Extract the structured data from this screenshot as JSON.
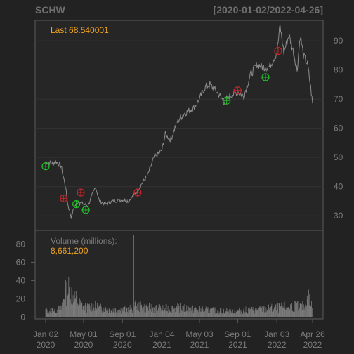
{
  "title": "SCHW",
  "date_range": "[2020-01-02/2022-04-26]",
  "last_label": "Last 68.540001",
  "volume_label": "Volume (millions):",
  "volume_value": "8,661,200",
  "colors": {
    "background": "#222222",
    "panel": "#262626",
    "price_line": "#8c8c8c",
    "volume_bar": "#7a7a7a",
    "accent": "#f0a21e",
    "buy_marker": "#22c02c",
    "sell_marker": "#c0262c",
    "grid": "#333333",
    "axis_text": "#7b7b7b",
    "title_text": "#6f6f6f"
  },
  "chart_data": {
    "type": "line",
    "panels": [
      "price",
      "volume"
    ],
    "x_tick_labels": [
      {
        "date": "2020-01-02",
        "line1": "Jan 02",
        "line2": "2020"
      },
      {
        "date": "2020-05-01",
        "line1": "May 01",
        "line2": "2020"
      },
      {
        "date": "2020-09-01",
        "line1": "Sep 01",
        "line2": "2020"
      },
      {
        "date": "2021-01-04",
        "line1": "Jan 04",
        "line2": "2021"
      },
      {
        "date": "2021-05-03",
        "line1": "May 03",
        "line2": "2021"
      },
      {
        "date": "2021-09-01",
        "line1": "Sep 01",
        "line2": "2021"
      },
      {
        "date": "2022-01-03",
        "line1": "Jan 03",
        "line2": "2022"
      },
      {
        "date": "2022-04-26",
        "line1": "Apr 26",
        "line2": "2022"
      }
    ],
    "price": {
      "ylim": [
        25,
        97
      ],
      "y_ticks": [
        30,
        40,
        50,
        60,
        70,
        80,
        90
      ],
      "grid": true,
      "series": [
        [
          "2020-01-02",
          48.5
        ],
        [
          "2020-01-20",
          48.0
        ],
        [
          "2020-02-05",
          48.5
        ],
        [
          "2020-02-20",
          47.0
        ],
        [
          "2020-03-05",
          40.0
        ],
        [
          "2020-03-12",
          34.0
        ],
        [
          "2020-03-23",
          29.5
        ],
        [
          "2020-04-01",
          33.0
        ],
        [
          "2020-04-15",
          35.0
        ],
        [
          "2020-05-01",
          34.0
        ],
        [
          "2020-05-15",
          33.5
        ],
        [
          "2020-06-08",
          40.0
        ],
        [
          "2020-06-20",
          35.0
        ],
        [
          "2020-07-10",
          34.0
        ],
        [
          "2020-08-01",
          35.0
        ],
        [
          "2020-09-01",
          35.5
        ],
        [
          "2020-09-20",
          35.0
        ],
        [
          "2020-10-15",
          38.0
        ],
        [
          "2020-11-01",
          41.0
        ],
        [
          "2020-11-20",
          44.0
        ],
        [
          "2020-12-10",
          50.0
        ],
        [
          "2021-01-04",
          52.5
        ],
        [
          "2021-01-15",
          58.0
        ],
        [
          "2021-02-01",
          56.0
        ],
        [
          "2021-02-20",
          62.0
        ],
        [
          "2021-03-15",
          65.0
        ],
        [
          "2021-04-15",
          67.0
        ],
        [
          "2021-05-03",
          70.0
        ],
        [
          "2021-05-20",
          74.0
        ],
        [
          "2021-06-05",
          75.0
        ],
        [
          "2021-07-01",
          72.0
        ],
        [
          "2021-07-20",
          69.0
        ],
        [
          "2021-08-05",
          71.0
        ],
        [
          "2021-09-01",
          72.5
        ],
        [
          "2021-09-20",
          71.0
        ],
        [
          "2021-10-10",
          78.0
        ],
        [
          "2021-11-01",
          82.0
        ],
        [
          "2021-11-20",
          81.0
        ],
        [
          "2021-12-10",
          81.0
        ],
        [
          "2022-01-03",
          86.0
        ],
        [
          "2022-01-13",
          95.0
        ],
        [
          "2022-01-25",
          86.0
        ],
        [
          "2022-02-10",
          92.0
        ],
        [
          "2022-02-25",
          86.0
        ],
        [
          "2022-03-08",
          80.0
        ],
        [
          "2022-03-18",
          92.0
        ],
        [
          "2022-03-28",
          85.0
        ],
        [
          "2022-04-10",
          82.0
        ],
        [
          "2022-04-20",
          74.0
        ],
        [
          "2022-04-26",
          68.54
        ]
      ],
      "buy_signals": [
        [
          "2020-01-02",
          47.0
        ],
        [
          "2020-04-08",
          34.0
        ],
        [
          "2020-05-08",
          32.0
        ],
        [
          "2021-07-28",
          69.5
        ],
        [
          "2021-11-28",
          77.5
        ]
      ],
      "sell_signals": [
        [
          "2020-02-28",
          36.0
        ],
        [
          "2020-04-22",
          38.0
        ],
        [
          "2020-10-19",
          38.0
        ],
        [
          "2021-09-01",
          73.0
        ],
        [
          "2022-01-07",
          86.5
        ]
      ]
    },
    "volume": {
      "ylim": [
        -2,
        95
      ],
      "y_ticks": [
        0,
        20,
        40,
        60,
        80
      ],
      "units": "millions",
      "series": [
        [
          "2020-01-02",
          7
        ],
        [
          "2020-02-01",
          8
        ],
        [
          "2020-02-20",
          9
        ],
        [
          "2020-03-01",
          25
        ],
        [
          "2020-03-15",
          30
        ],
        [
          "2020-04-01",
          22
        ],
        [
          "2020-04-20",
          14
        ],
        [
          "2020-05-10",
          10
        ],
        [
          "2020-06-01",
          12
        ],
        [
          "2020-07-01",
          9
        ],
        [
          "2020-08-01",
          8
        ],
        [
          "2020-09-01",
          8
        ],
        [
          "2020-10-05",
          10
        ],
        [
          "2020-10-07",
          90
        ],
        [
          "2020-10-09",
          12
        ],
        [
          "2020-11-01",
          11
        ],
        [
          "2020-12-01",
          10
        ],
        [
          "2021-01-04",
          9
        ],
        [
          "2021-03-01",
          10
        ],
        [
          "2021-05-01",
          8
        ],
        [
          "2021-07-01",
          7
        ],
        [
          "2021-09-01",
          7
        ],
        [
          "2021-11-01",
          8
        ],
        [
          "2022-01-03",
          10
        ],
        [
          "2022-02-01",
          11
        ],
        [
          "2022-03-01",
          12
        ],
        [
          "2022-04-01",
          11
        ],
        [
          "2022-04-15",
          22
        ],
        [
          "2022-04-26",
          9
        ]
      ]
    }
  }
}
